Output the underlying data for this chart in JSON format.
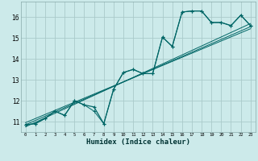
{
  "title": "",
  "xlabel": "Humidex (Indice chaleur)",
  "bg_color": "#cceaea",
  "grid_color": "#aacaca",
  "line_color": "#006666",
  "xlim": [
    -0.5,
    23.5
  ],
  "ylim": [
    10.5,
    16.75
  ],
  "yticks": [
    11,
    12,
    13,
    14,
    15,
    16
  ],
  "xticks": [
    0,
    1,
    2,
    3,
    4,
    5,
    6,
    7,
    8,
    9,
    10,
    11,
    12,
    13,
    14,
    15,
    16,
    17,
    18,
    19,
    20,
    21,
    22,
    23
  ],
  "main_series": [
    10.85,
    10.9,
    11.15,
    11.5,
    11.3,
    12.0,
    11.8,
    11.7,
    10.9,
    12.55,
    13.35,
    13.5,
    13.3,
    13.3,
    15.05,
    14.6,
    16.25,
    16.3,
    16.3,
    15.75,
    15.75,
    15.6,
    16.1,
    15.6
  ],
  "alt_series": [
    10.85,
    10.9,
    11.15,
    11.5,
    11.3,
    12.0,
    11.8,
    11.5,
    10.9,
    12.55,
    13.35,
    13.5,
    13.3,
    13.3,
    15.05,
    14.6,
    16.25,
    16.3,
    16.3,
    15.75,
    15.75,
    15.6,
    16.1,
    15.6
  ],
  "trend_lines": [
    [
      10.75,
      15.7
    ],
    [
      10.85,
      15.55
    ],
    [
      10.95,
      15.45
    ]
  ]
}
